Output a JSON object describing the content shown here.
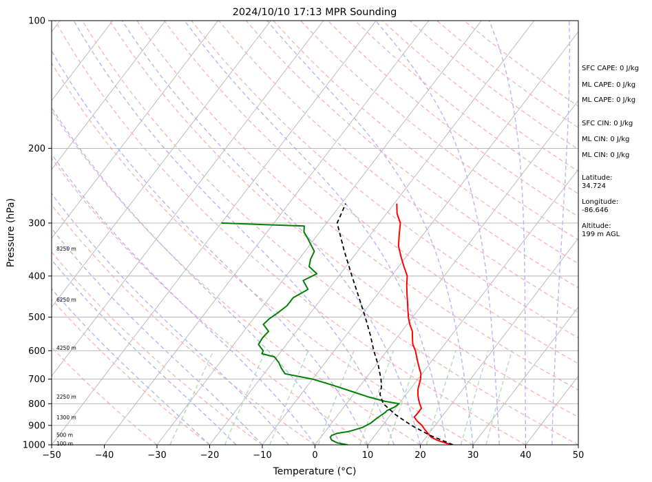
{
  "chart_data": {
    "type": "skew-t",
    "title": "2024/10/10 17:13 MPR Sounding",
    "xlabel": "Temperature (°C)",
    "ylabel": "Pressure (hPa)",
    "xlim": [
      -50,
      50
    ],
    "ylim": [
      1000,
      100
    ],
    "y_scale": "log",
    "grid": true,
    "x_ticks": [
      -50,
      -40,
      -30,
      -20,
      -10,
      0,
      10,
      20,
      30,
      40,
      50
    ],
    "y_ticks": [
      1000,
      900,
      800,
      700,
      600,
      500,
      400,
      300,
      200,
      100
    ],
    "series": [
      {
        "kind": "temperature",
        "color": "#ff0000",
        "points": [
          [
            1000,
            26.2
          ],
          [
            990,
            24.5
          ],
          [
            975,
            22.5
          ],
          [
            960,
            21.0
          ],
          [
            940,
            19.8
          ],
          [
            920,
            18.6
          ],
          [
            900,
            17.5
          ],
          [
            880,
            16.0
          ],
          [
            860,
            14.8
          ],
          [
            845,
            14.9
          ],
          [
            820,
            14.9
          ],
          [
            800,
            13.9
          ],
          [
            780,
            13.0
          ],
          [
            760,
            12.2
          ],
          [
            740,
            11.5
          ],
          [
            720,
            11.0
          ],
          [
            700,
            10.5
          ],
          [
            680,
            9.8
          ],
          [
            660,
            8.7
          ],
          [
            640,
            7.6
          ],
          [
            620,
            6.5
          ],
          [
            600,
            5.4
          ],
          [
            580,
            4.0
          ],
          [
            560,
            3.0
          ],
          [
            540,
            2.0
          ],
          [
            520,
            0.5
          ],
          [
            500,
            -0.8
          ],
          [
            480,
            -2.0
          ],
          [
            460,
            -3.2
          ],
          [
            440,
            -4.5
          ],
          [
            420,
            -5.8
          ],
          [
            400,
            -7.0
          ],
          [
            380,
            -9.0
          ],
          [
            360,
            -11.0
          ],
          [
            340,
            -13.0
          ],
          [
            320,
            -14.5
          ],
          [
            300,
            -16.0
          ],
          [
            285,
            -18.0
          ],
          [
            270,
            -19.5
          ]
        ]
      },
      {
        "kind": "dewpoint",
        "color": "#008000",
        "points": [
          [
            1000,
            6.2
          ],
          [
            990,
            4.0
          ],
          [
            975,
            2.5
          ],
          [
            960,
            1.8
          ],
          [
            950,
            1.8
          ],
          [
            940,
            2.5
          ],
          [
            930,
            4.5
          ],
          [
            910,
            6.5
          ],
          [
            890,
            7.4
          ],
          [
            870,
            7.8
          ],
          [
            850,
            8.3
          ],
          [
            840,
            8.6
          ],
          [
            830,
            8.7
          ],
          [
            815,
            9.6
          ],
          [
            800,
            10.0
          ],
          [
            790,
            7.0
          ],
          [
            770,
            3.0
          ],
          [
            750,
            -0.5
          ],
          [
            720,
            -6.0
          ],
          [
            700,
            -10.0
          ],
          [
            680,
            -16.0
          ],
          [
            660,
            -17.5
          ],
          [
            640,
            -18.8
          ],
          [
            620,
            -20.5
          ],
          [
            610,
            -23.3
          ],
          [
            600,
            -23.5
          ],
          [
            580,
            -25.3
          ],
          [
            560,
            -25.5
          ],
          [
            540,
            -25.3
          ],
          [
            520,
            -27.3
          ],
          [
            505,
            -27.0
          ],
          [
            490,
            -26.3
          ],
          [
            470,
            -25.5
          ],
          [
            450,
            -25.5
          ],
          [
            430,
            -23.9
          ],
          [
            410,
            -26.1
          ],
          [
            395,
            -24.5
          ],
          [
            380,
            -27.0
          ],
          [
            365,
            -27.8
          ],
          [
            350,
            -28.2
          ],
          [
            340,
            -29.5
          ],
          [
            325,
            -31.5
          ],
          [
            315,
            -33.0
          ],
          [
            305,
            -33.8
          ],
          [
            300,
            -50.0
          ]
        ]
      },
      {
        "kind": "parcel",
        "color": "#000000",
        "points": [
          [
            1000,
            26.2
          ],
          [
            950,
            20.5
          ],
          [
            900,
            15.5
          ],
          [
            850,
            11.0
          ],
          [
            800,
            7.0
          ],
          [
            760,
            5.0
          ],
          [
            730,
            4.2
          ],
          [
            700,
            3.0
          ],
          [
            650,
            0.5
          ],
          [
            600,
            -2.5
          ],
          [
            550,
            -5.5
          ],
          [
            500,
            -9.0
          ],
          [
            450,
            -13.0
          ],
          [
            400,
            -17.5
          ],
          [
            350,
            -22.5
          ],
          [
            300,
            -28.0
          ],
          [
            270,
            -29.2
          ]
        ]
      }
    ],
    "height_labels": [
      {
        "text": "100 m",
        "pressure": 1000
      },
      {
        "text": "500 m",
        "pressure": 955
      },
      {
        "text": "1300 m",
        "pressure": 868
      },
      {
        "text": "2250 m",
        "pressure": 775
      },
      {
        "text": "4250 m",
        "pressure": 595
      },
      {
        "text": "6250 m",
        "pressure": 458
      },
      {
        "text": "8250 m",
        "pressure": 347
      }
    ],
    "annotations": [
      "SFC CAPE: 0 J/kg",
      "ML CAPE: 0 J/kg",
      "ML CAPE: 0 J/kg",
      "SFC CIN: 0 J/kg",
      "ML CIN: 0 J/kg",
      "ML CIN: 0 J/kg",
      "Latitude:",
      "34.724",
      "Longitude:",
      "-86.646",
      "Altitude:",
      "199 m AGL"
    ],
    "colors": {
      "isotherms": "#b4b4b4",
      "dry_adiabats": "#ffb4b4",
      "moist_adiabats": "#b4b4ff",
      "mixing_ratio": "#b4dcb4"
    }
  }
}
